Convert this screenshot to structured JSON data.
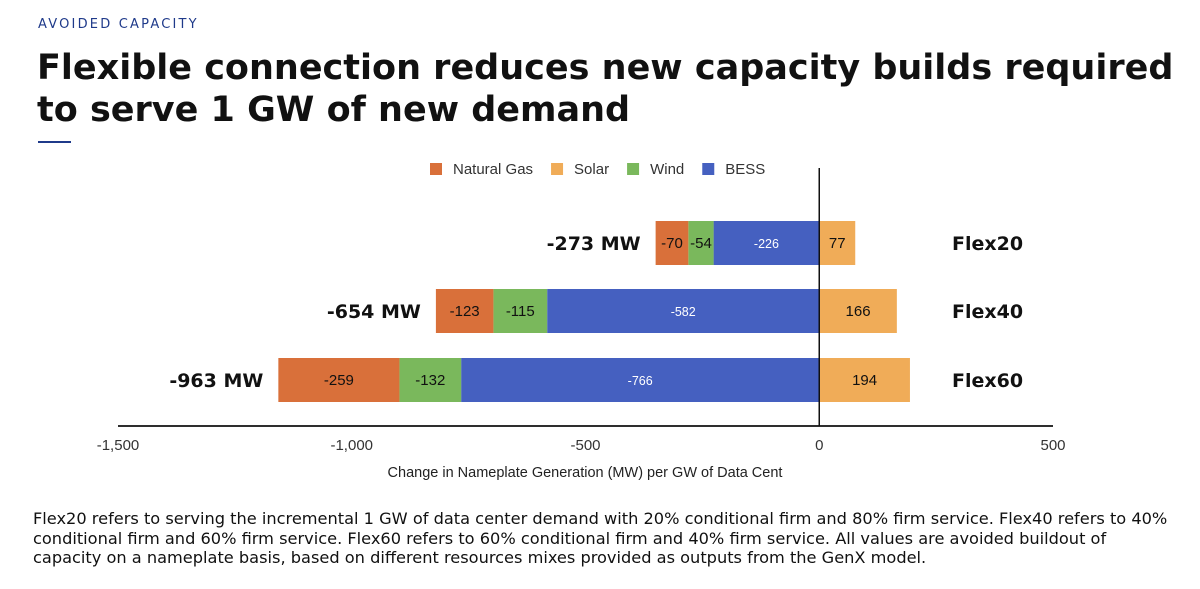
{
  "header": {
    "eyebrow": "AVOIDED CAPACITY",
    "title": "Flexible connection reduces new capacity builds required to serve 1 GW of new demand"
  },
  "footnote": "Flex20 refers to serving the incremental 1 GW of data center demand with 20% conditional firm and 80% firm service. Flex40 refers to 40% conditional firm and 60% firm service. Flex60 refers to 60% conditional firm and 40% firm service. All values are avoided buildout of capacity on a nameplate basis, based on different resources mixes provided as outputs from the GenX model.",
  "chart_data": {
    "type": "bar",
    "orientation": "horizontal",
    "stacked": true,
    "title": "",
    "xlabel": "Change in Nameplate Generation (MW) per GW of Data Cent",
    "ylabel": "",
    "xlim": [
      -1500,
      500
    ],
    "xticks": [
      -1500,
      -1000,
      -500,
      0,
      500
    ],
    "xtick_labels": [
      "-1,500",
      "-1,000",
      "-500",
      "0",
      "500"
    ],
    "legend_position": "top",
    "categories": [
      "Flex20",
      "Flex40",
      "Flex60"
    ],
    "totals": [
      "-273 MW",
      "-654 MW",
      "-963 MW"
    ],
    "series": [
      {
        "name": "BESS",
        "color": "#4560c0",
        "text_color": "#ffffff",
        "values": [
          -226,
          -582,
          -766
        ]
      },
      {
        "name": "Wind",
        "color": "#7ab85c",
        "text_color": "#111111",
        "values": [
          -54,
          -115,
          -132
        ]
      },
      {
        "name": "Natural Gas",
        "color": "#d9703a",
        "text_color": "#111111",
        "values": [
          -70,
          -123,
          -259
        ]
      },
      {
        "name": "Solar",
        "color": "#f0ac58",
        "text_color": "#111111",
        "values": [
          77,
          166,
          194
        ]
      }
    ],
    "legend_order": [
      "Natural Gas",
      "Solar",
      "Wind",
      "BESS"
    ]
  }
}
